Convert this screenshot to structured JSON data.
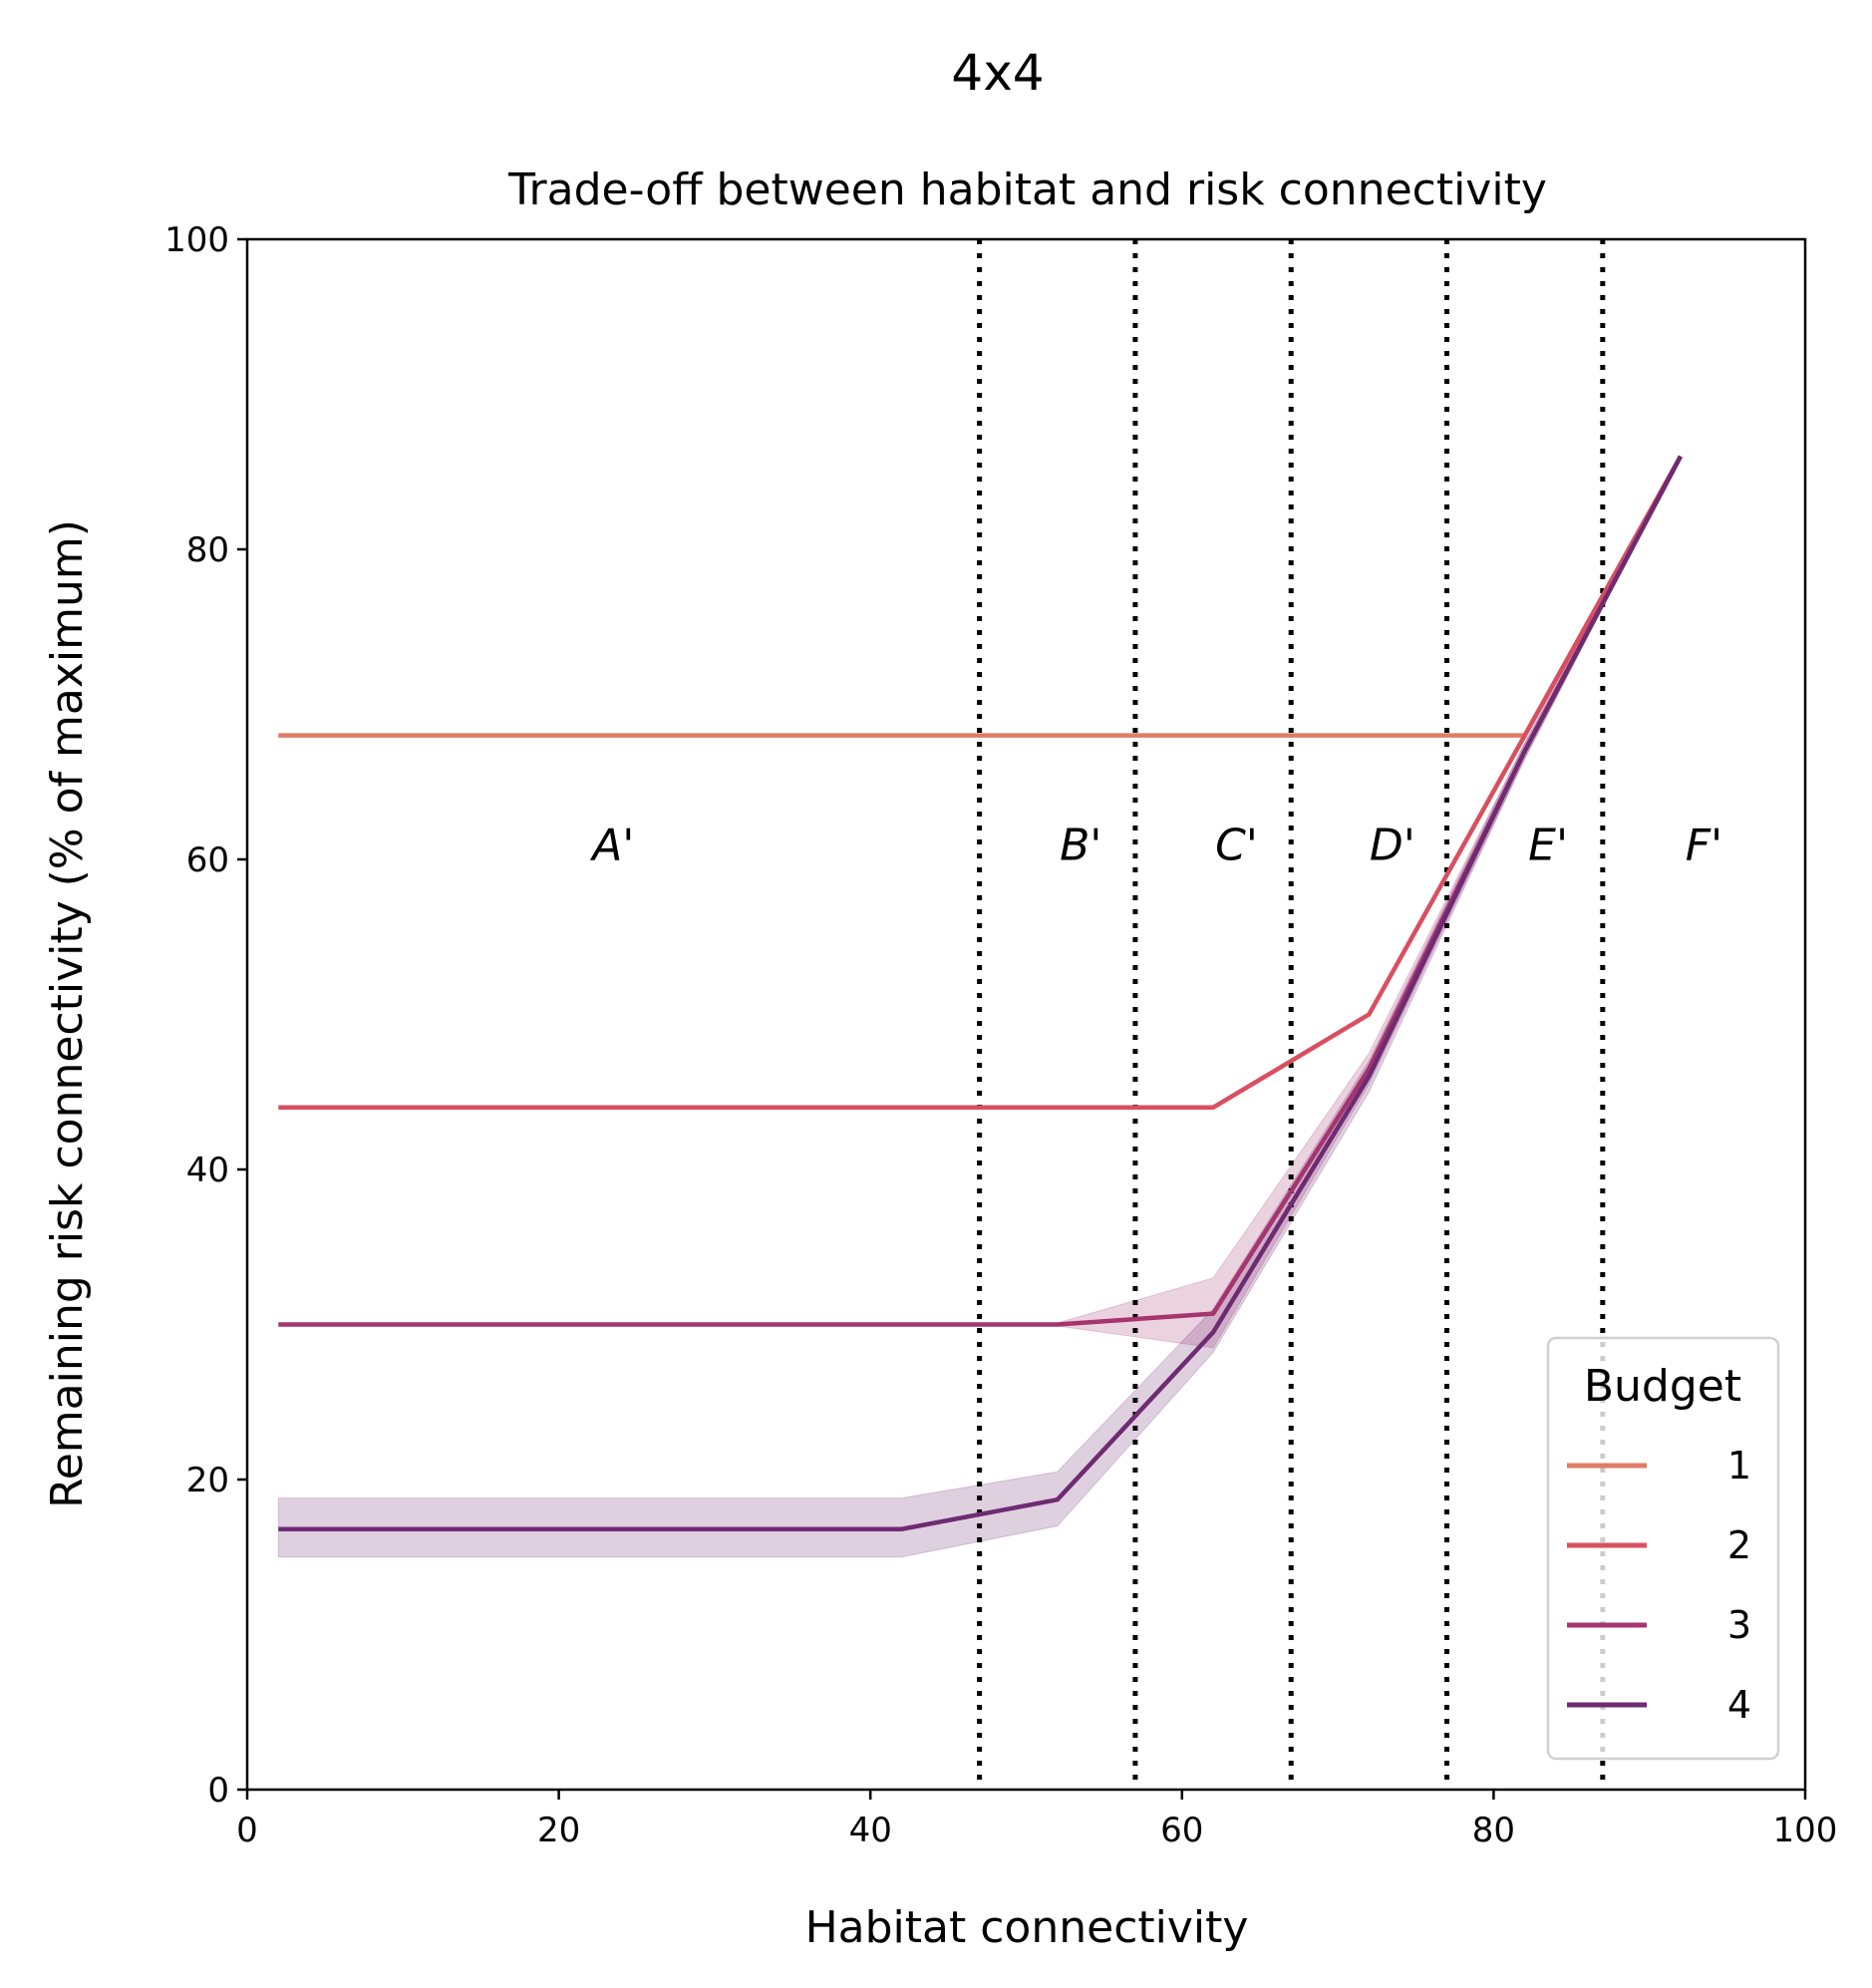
{
  "chart_data": {
    "type": "line",
    "suptitle": "4x4",
    "title": "Trade-off between habitat and risk connectivity",
    "xlabel": "Habitat connectivity",
    "ylabel": "Remaining risk connectivity (% of maximum)",
    "xlim": [
      0,
      100
    ],
    "ylim": [
      0,
      100
    ],
    "xticks": [
      "0",
      "20",
      "40",
      "60",
      "80",
      "100"
    ],
    "yticks": [
      "0",
      "20",
      "40",
      "60",
      "80",
      "100"
    ],
    "grid": false,
    "legend": {
      "title": "Budget",
      "placement": "lower-right"
    },
    "vlines": {
      "x": [
        47,
        57,
        67,
        77,
        87
      ],
      "style": "dotted",
      "color": "#000000"
    },
    "region_labels": [
      {
        "text": "A'",
        "x": 23.5,
        "y": 61
      },
      {
        "text": "B'",
        "x": 53.5,
        "y": 61
      },
      {
        "text": "C'",
        "x": 63.5,
        "y": 61
      },
      {
        "text": "D'",
        "x": 73.5,
        "y": 61
      },
      {
        "text": "E'",
        "x": 83.5,
        "y": 61
      },
      {
        "text": "F'",
        "x": 93.5,
        "y": 61
      }
    ],
    "series": [
      {
        "name": "1",
        "color": "#e07b66",
        "x": [
          2,
          12,
          22,
          32,
          42,
          52,
          62,
          72,
          82,
          92
        ],
        "y": [
          68,
          68,
          68,
          68,
          68,
          68,
          68,
          68,
          68,
          86
        ]
      },
      {
        "name": "2",
        "color": "#d94f60",
        "x": [
          2,
          12,
          22,
          32,
          42,
          52,
          62,
          72,
          82,
          92
        ],
        "y": [
          44,
          44,
          44,
          44,
          44,
          44,
          44,
          50,
          68,
          86
        ]
      },
      {
        "name": "3",
        "color": "#a5346f",
        "x": [
          2,
          12,
          22,
          32,
          42,
          52,
          62,
          72,
          82,
          92
        ],
        "y": [
          30,
          30,
          30,
          30,
          30,
          30,
          30.7,
          46.5,
          67,
          86
        ],
        "lower": [
          30,
          30,
          30,
          30,
          30,
          29.9,
          28.5,
          45.5,
          66.5,
          86
        ],
        "upper": [
          30,
          30,
          30,
          30,
          30,
          30.1,
          33,
          47.5,
          67.5,
          86
        ]
      },
      {
        "name": "4",
        "color": "#6e2b72",
        "x": [
          2,
          12,
          22,
          32,
          42,
          52,
          62,
          72,
          82,
          92
        ],
        "y": [
          16.8,
          16.8,
          16.8,
          16.8,
          16.8,
          18.7,
          29.5,
          46,
          67,
          86
        ],
        "lower": [
          15,
          15,
          15,
          15,
          15,
          17,
          28.2,
          45,
          66.5,
          86
        ],
        "upper": [
          18.8,
          18.8,
          18.8,
          18.8,
          18.8,
          20.5,
          31,
          47,
          67.5,
          86
        ]
      }
    ]
  }
}
